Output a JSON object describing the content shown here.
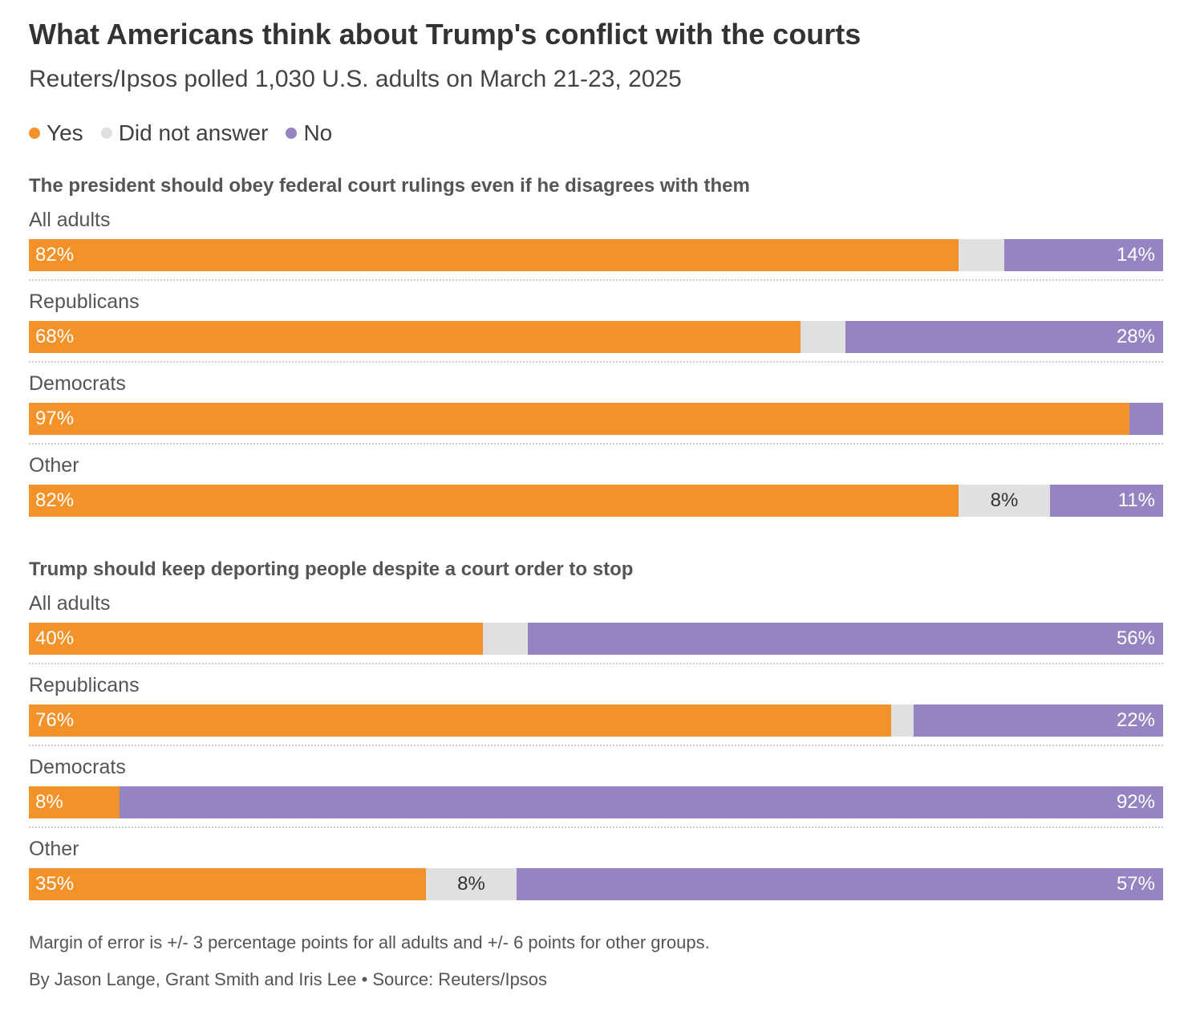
{
  "title": "What Americans think about Trump's conflict with the courts",
  "subtitle": "Reuters/Ipsos polled 1,030 U.S. adults on March 21-23, 2025",
  "legend": [
    {
      "label": "Yes",
      "color": "#f39229"
    },
    {
      "label": "Did not answer",
      "color": "#e0e0e0"
    },
    {
      "label": "No",
      "color": "#9683c2"
    }
  ],
  "colors": {
    "yes": "#f39229",
    "na": "#e0e0e0",
    "no": "#9683c2"
  },
  "chart_data": [
    {
      "type": "bar",
      "stacked": true,
      "orientation": "horizontal",
      "title": "The president should obey federal court rulings even if he disagrees with them",
      "categories": [
        "All adults",
        "Republicans",
        "Democrats",
        "Other"
      ],
      "series": [
        {
          "name": "Yes",
          "values": [
            82,
            68,
            97,
            82
          ],
          "labels": [
            "82%",
            "68%",
            "97%",
            "82%"
          ]
        },
        {
          "name": "Did not answer",
          "values": [
            4,
            4,
            0,
            8
          ],
          "labels": [
            "",
            "",
            "",
            "8%"
          ]
        },
        {
          "name": "No",
          "values": [
            14,
            28,
            3,
            11
          ],
          "labels": [
            "14%",
            "28%",
            "",
            "11%"
          ]
        }
      ],
      "xlim": [
        0,
        100
      ]
    },
    {
      "type": "bar",
      "stacked": true,
      "orientation": "horizontal",
      "title": "Trump should keep deporting people despite a court order to stop",
      "categories": [
        "All adults",
        "Republicans",
        "Democrats",
        "Other"
      ],
      "series": [
        {
          "name": "Yes",
          "values": [
            40,
            76,
            8,
            35
          ],
          "labels": [
            "40%",
            "76%",
            "8%",
            "35%"
          ]
        },
        {
          "name": "Did not answer",
          "values": [
            4,
            2,
            0,
            8
          ],
          "labels": [
            "",
            "",
            "",
            "8%"
          ]
        },
        {
          "name": "No",
          "values": [
            56,
            22,
            92,
            57
          ],
          "labels": [
            "56%",
            "22%",
            "92%",
            "57%"
          ]
        }
      ],
      "xlim": [
        0,
        100
      ]
    }
  ],
  "footnote": "Margin of error is +/- 3 percentage points for all adults and +/- 6 points for other groups.",
  "credit": "By Jason Lange, Grant Smith and Iris Lee • Source: Reuters/Ipsos"
}
